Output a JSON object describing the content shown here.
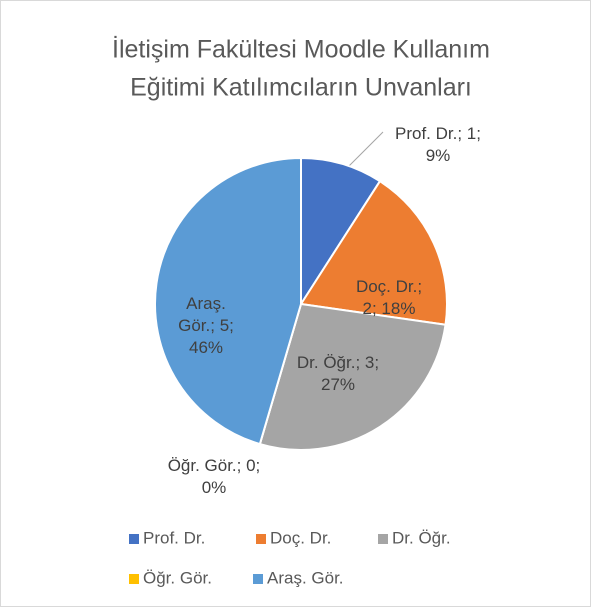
{
  "chart_data": {
    "type": "pie",
    "title": [
      "İletişim Fakültesi Moodle Kullanım",
      "Eğitimi Katılımcıların Unvanları"
    ],
    "categories": [
      "Prof. Dr.",
      "Doç. Dr.",
      "Dr. Öğr.",
      "Öğr. Gör.",
      "Araş. Gör."
    ],
    "values": [
      1,
      2,
      3,
      0,
      5
    ],
    "value_labels": [
      "Prof. Dr.; 1; 9%",
      "Doç. Dr.; 2; 18%",
      "Dr. Öğr.; 3; 27%",
      "Öğr. Gör.; 0; 0%",
      "Araş. Gör.; 5; 46%"
    ],
    "colors": [
      "#4472c4",
      "#ed7d31",
      "#a5a5a5",
      "#ffc000",
      "#5b9bd5"
    ],
    "legend": "bottom"
  }
}
